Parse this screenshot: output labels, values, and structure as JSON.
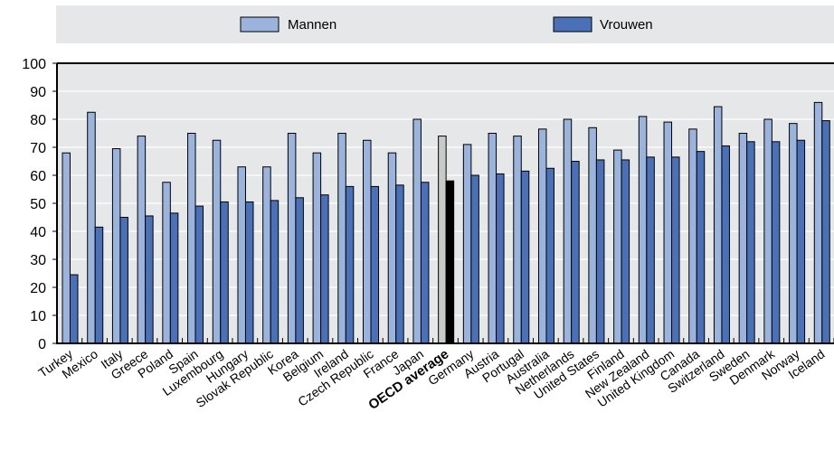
{
  "chart_data": {
    "type": "bar",
    "ylim": [
      0,
      100
    ],
    "yticks": [
      "0",
      "10",
      "20",
      "30",
      "40",
      "50",
      "60",
      "70",
      "80",
      "90",
      "100"
    ],
    "grid": true,
    "legend_position": "top",
    "categories": [
      "Turkey",
      "Mexico",
      "Italy",
      "Greece",
      "Poland",
      "Spain",
      "Luxembourg",
      "Hungary",
      "Slovak Republic",
      "Korea",
      "Belgium",
      "Ireland",
      "Czech Republic",
      "France",
      "Japan",
      "OECD average",
      "Germany",
      "Austria",
      "Portugal",
      "Australia",
      "Netherlands",
      "United States",
      "Finland",
      "New Zealand",
      "United Kingdom",
      "Canada",
      "Switzerland",
      "Sweden",
      "Denmark",
      "Norway",
      "Iceland"
    ],
    "highlight_category": "OECD average",
    "series": [
      {
        "name": "Mannen",
        "color": "#9bb4dd",
        "highlight_color": "#c8cac8",
        "values": [
          68,
          82.5,
          69.5,
          74,
          57.5,
          75,
          72.5,
          63,
          63,
          75,
          68,
          75,
          72.5,
          68,
          80,
          74,
          71,
          75,
          74,
          76.5,
          80,
          77,
          69,
          81,
          79,
          76.5,
          84.5,
          75,
          80,
          78.5,
          86
        ]
      },
      {
        "name": "Vrouwen",
        "color": "#4a70b8",
        "highlight_color": "#000000",
        "values": [
          24.5,
          41.5,
          45,
          45.5,
          46.5,
          49,
          50.5,
          50.5,
          51,
          52,
          53,
          56,
          56,
          56.5,
          57.5,
          58,
          60,
          60.5,
          61.5,
          62.5,
          65,
          65.5,
          65.5,
          66.5,
          66.5,
          68.5,
          70.5,
          72,
          72,
          72.5,
          79.5
        ]
      }
    ]
  }
}
